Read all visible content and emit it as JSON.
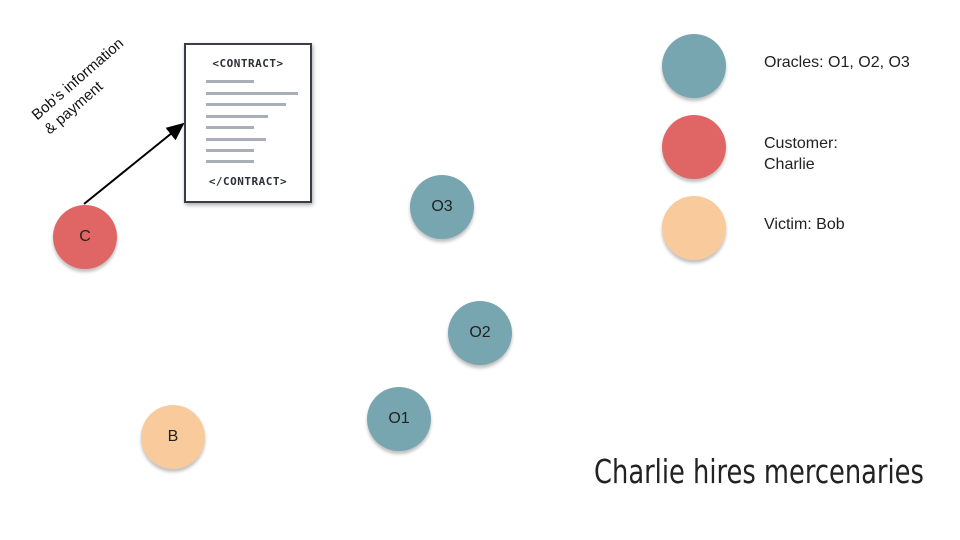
{
  "title": "Charlie hires mercenaries",
  "colors": {
    "oracle": "#78a6b0",
    "customer": "#e06666",
    "victim": "#f9cb9c"
  },
  "nodes": {
    "customer": "C",
    "victim": "B",
    "o1": "O1",
    "o2": "O2",
    "o3": "O3"
  },
  "contract": {
    "open_tag": "<CONTRACT>",
    "close_tag": "</CONTRACT>",
    "icon": "document-icon"
  },
  "arrow_label": {
    "line1": "Bob’s information",
    "line2": "& payment"
  },
  "legend": {
    "oracles": "Oracles: O1, O2, O3",
    "customer": "Customer: Charlie",
    "victim": "Victim: Bob"
  }
}
